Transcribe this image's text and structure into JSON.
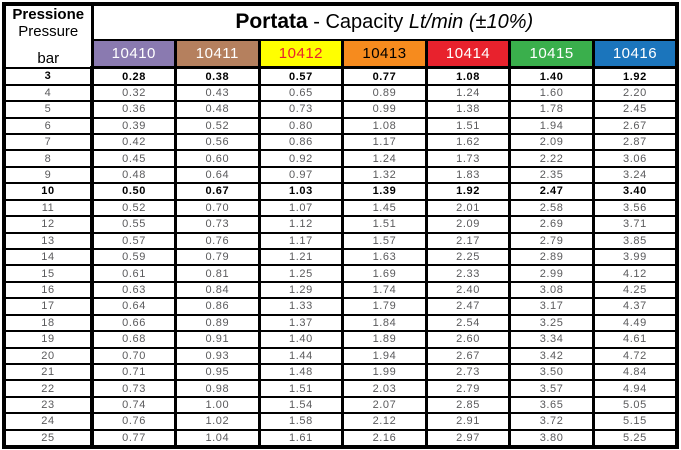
{
  "header": {
    "pressure_label_it": "Pressione",
    "pressure_label_en": "Pressure",
    "pressure_unit": "bar",
    "title_bold": "Portata",
    "title_mid": " - Capacity ",
    "title_italic": "Lt/min (±10%)"
  },
  "columns": [
    {
      "label": "10410",
      "bg": "#8A7AB0",
      "fg": "#FFFFFF"
    },
    {
      "label": "10411",
      "bg": "#B5805E",
      "fg": "#FFFFFF"
    },
    {
      "label": "10412",
      "bg": "#FFFF00",
      "fg": "#E8222D"
    },
    {
      "label": "10413",
      "bg": "#F68B1E",
      "fg": "#000000"
    },
    {
      "label": "10414",
      "bg": "#E8222D",
      "fg": "#FFFFFF"
    },
    {
      "label": "10415",
      "bg": "#3AAF4C",
      "fg": "#FFFFFF"
    },
    {
      "label": "10416",
      "bg": "#1B75BC",
      "fg": "#FFFFFF"
    }
  ],
  "rows": [
    {
      "bar": "3",
      "bold": true,
      "values": [
        "0.28",
        "0.38",
        "0.57",
        "0.77",
        "1.08",
        "1.40",
        "1.92"
      ]
    },
    {
      "bar": "4",
      "bold": false,
      "values": [
        "0.32",
        "0.43",
        "0.65",
        "0.89",
        "1.24",
        "1.60",
        "2.20"
      ]
    },
    {
      "bar": "5",
      "bold": false,
      "values": [
        "0.36",
        "0.48",
        "0.73",
        "0.99",
        "1.38",
        "1.78",
        "2.45"
      ]
    },
    {
      "bar": "6",
      "bold": false,
      "values": [
        "0.39",
        "0.52",
        "0.80",
        "1.08",
        "1.51",
        "1.94",
        "2.67"
      ]
    },
    {
      "bar": "7",
      "bold": false,
      "values": [
        "0.42",
        "0.56",
        "0.86",
        "1.17",
        "1.62",
        "2.09",
        "2.87"
      ]
    },
    {
      "bar": "8",
      "bold": false,
      "values": [
        "0.45",
        "0.60",
        "0.92",
        "1.24",
        "1.73",
        "2.22",
        "3.06"
      ]
    },
    {
      "bar": "9",
      "bold": false,
      "values": [
        "0.48",
        "0.64",
        "0.97",
        "1.32",
        "1.83",
        "2.35",
        "3.24"
      ]
    },
    {
      "bar": "10",
      "bold": true,
      "values": [
        "0.50",
        "0.67",
        "1.03",
        "1.39",
        "1.92",
        "2.47",
        "3.40"
      ]
    },
    {
      "bar": "11",
      "bold": false,
      "values": [
        "0.52",
        "0.70",
        "1.07",
        "1.45",
        "2.01",
        "2.58",
        "3.56"
      ]
    },
    {
      "bar": "12",
      "bold": false,
      "values": [
        "0.55",
        "0.73",
        "1.12",
        "1.51",
        "2.09",
        "2.69",
        "3.71"
      ]
    },
    {
      "bar": "13",
      "bold": false,
      "values": [
        "0.57",
        "0.76",
        "1.17",
        "1.57",
        "2.17",
        "2.79",
        "3.85"
      ]
    },
    {
      "bar": "14",
      "bold": false,
      "values": [
        "0.59",
        "0.79",
        "1.21",
        "1.63",
        "2.25",
        "2.89",
        "3.99"
      ]
    },
    {
      "bar": "15",
      "bold": false,
      "values": [
        "0.61",
        "0.81",
        "1.25",
        "1.69",
        "2.33",
        "2.99",
        "4.12"
      ]
    },
    {
      "bar": "16",
      "bold": false,
      "values": [
        "0.63",
        "0.84",
        "1.29",
        "1.74",
        "2.40",
        "3.08",
        "4.25"
      ]
    },
    {
      "bar": "17",
      "bold": false,
      "values": [
        "0.64",
        "0.86",
        "1.33",
        "1.79",
        "2.47",
        "3.17",
        "4.37"
      ]
    },
    {
      "bar": "18",
      "bold": false,
      "values": [
        "0.66",
        "0.89",
        "1.37",
        "1.84",
        "2.54",
        "3.25",
        "4.49"
      ]
    },
    {
      "bar": "19",
      "bold": false,
      "values": [
        "0.68",
        "0.91",
        "1.40",
        "1.89",
        "2.60",
        "3.34",
        "4.61"
      ]
    },
    {
      "bar": "20",
      "bold": false,
      "values": [
        "0.70",
        "0.93",
        "1.44",
        "1.94",
        "2.67",
        "3.42",
        "4.72"
      ]
    },
    {
      "bar": "21",
      "bold": false,
      "values": [
        "0.71",
        "0.95",
        "1.48",
        "1.99",
        "2.73",
        "3.50",
        "4.84"
      ]
    },
    {
      "bar": "22",
      "bold": false,
      "values": [
        "0.73",
        "0.98",
        "1.51",
        "2.03",
        "2.79",
        "3.57",
        "4.94"
      ]
    },
    {
      "bar": "23",
      "bold": false,
      "values": [
        "0.74",
        "1.00",
        "1.54",
        "2.07",
        "2.85",
        "3.65",
        "5.05"
      ]
    },
    {
      "bar": "24",
      "bold": false,
      "values": [
        "0.76",
        "1.02",
        "1.58",
        "2.12",
        "2.91",
        "3.72",
        "5.15"
      ]
    },
    {
      "bar": "25",
      "bold": false,
      "values": [
        "0.77",
        "1.04",
        "1.61",
        "2.16",
        "2.97",
        "3.80",
        "5.25"
      ]
    }
  ],
  "chart_data": {
    "type": "table",
    "title": "Portata - Capacity Lt/min (±10%)",
    "columns": [
      "bar",
      "10410",
      "10411",
      "10412",
      "10413",
      "10414",
      "10415",
      "10416"
    ],
    "rows": [
      [
        3,
        0.28,
        0.38,
        0.57,
        0.77,
        1.08,
        1.4,
        1.92
      ],
      [
        4,
        0.32,
        0.43,
        0.65,
        0.89,
        1.24,
        1.6,
        2.2
      ],
      [
        5,
        0.36,
        0.48,
        0.73,
        0.99,
        1.38,
        1.78,
        2.45
      ],
      [
        6,
        0.39,
        0.52,
        0.8,
        1.08,
        1.51,
        1.94,
        2.67
      ],
      [
        7,
        0.42,
        0.56,
        0.86,
        1.17,
        1.62,
        2.09,
        2.87
      ],
      [
        8,
        0.45,
        0.6,
        0.92,
        1.24,
        1.73,
        2.22,
        3.06
      ],
      [
        9,
        0.48,
        0.64,
        0.97,
        1.32,
        1.83,
        2.35,
        3.24
      ],
      [
        10,
        0.5,
        0.67,
        1.03,
        1.39,
        1.92,
        2.47,
        3.4
      ],
      [
        11,
        0.52,
        0.7,
        1.07,
        1.45,
        2.01,
        2.58,
        3.56
      ],
      [
        12,
        0.55,
        0.73,
        1.12,
        1.51,
        2.09,
        2.69,
        3.71
      ],
      [
        13,
        0.57,
        0.76,
        1.17,
        1.57,
        2.17,
        2.79,
        3.85
      ],
      [
        14,
        0.59,
        0.79,
        1.21,
        1.63,
        2.25,
        2.89,
        3.99
      ],
      [
        15,
        0.61,
        0.81,
        1.25,
        1.69,
        2.33,
        2.99,
        4.12
      ],
      [
        16,
        0.63,
        0.84,
        1.29,
        1.74,
        2.4,
        3.08,
        4.25
      ],
      [
        17,
        0.64,
        0.86,
        1.33,
        1.79,
        2.47,
        3.17,
        4.37
      ],
      [
        18,
        0.66,
        0.89,
        1.37,
        1.84,
        2.54,
        3.25,
        4.49
      ],
      [
        19,
        0.68,
        0.91,
        1.4,
        1.89,
        2.6,
        3.34,
        4.61
      ],
      [
        20,
        0.7,
        0.93,
        1.44,
        1.94,
        2.67,
        3.42,
        4.72
      ],
      [
        21,
        0.71,
        0.95,
        1.48,
        1.99,
        2.73,
        3.5,
        4.84
      ],
      [
        22,
        0.73,
        0.98,
        1.51,
        2.03,
        2.79,
        3.57,
        4.94
      ],
      [
        23,
        0.74,
        1.0,
        1.54,
        2.07,
        2.85,
        3.65,
        5.05
      ],
      [
        24,
        0.76,
        1.02,
        1.58,
        2.12,
        2.91,
        3.72,
        5.15
      ],
      [
        25,
        0.77,
        1.04,
        1.61,
        2.16,
        2.97,
        3.8,
        5.25
      ]
    ],
    "bold_rows": [
      3,
      10
    ],
    "units": {
      "pressure": "bar",
      "capacity": "Lt/min"
    },
    "tolerance": "±10%"
  }
}
